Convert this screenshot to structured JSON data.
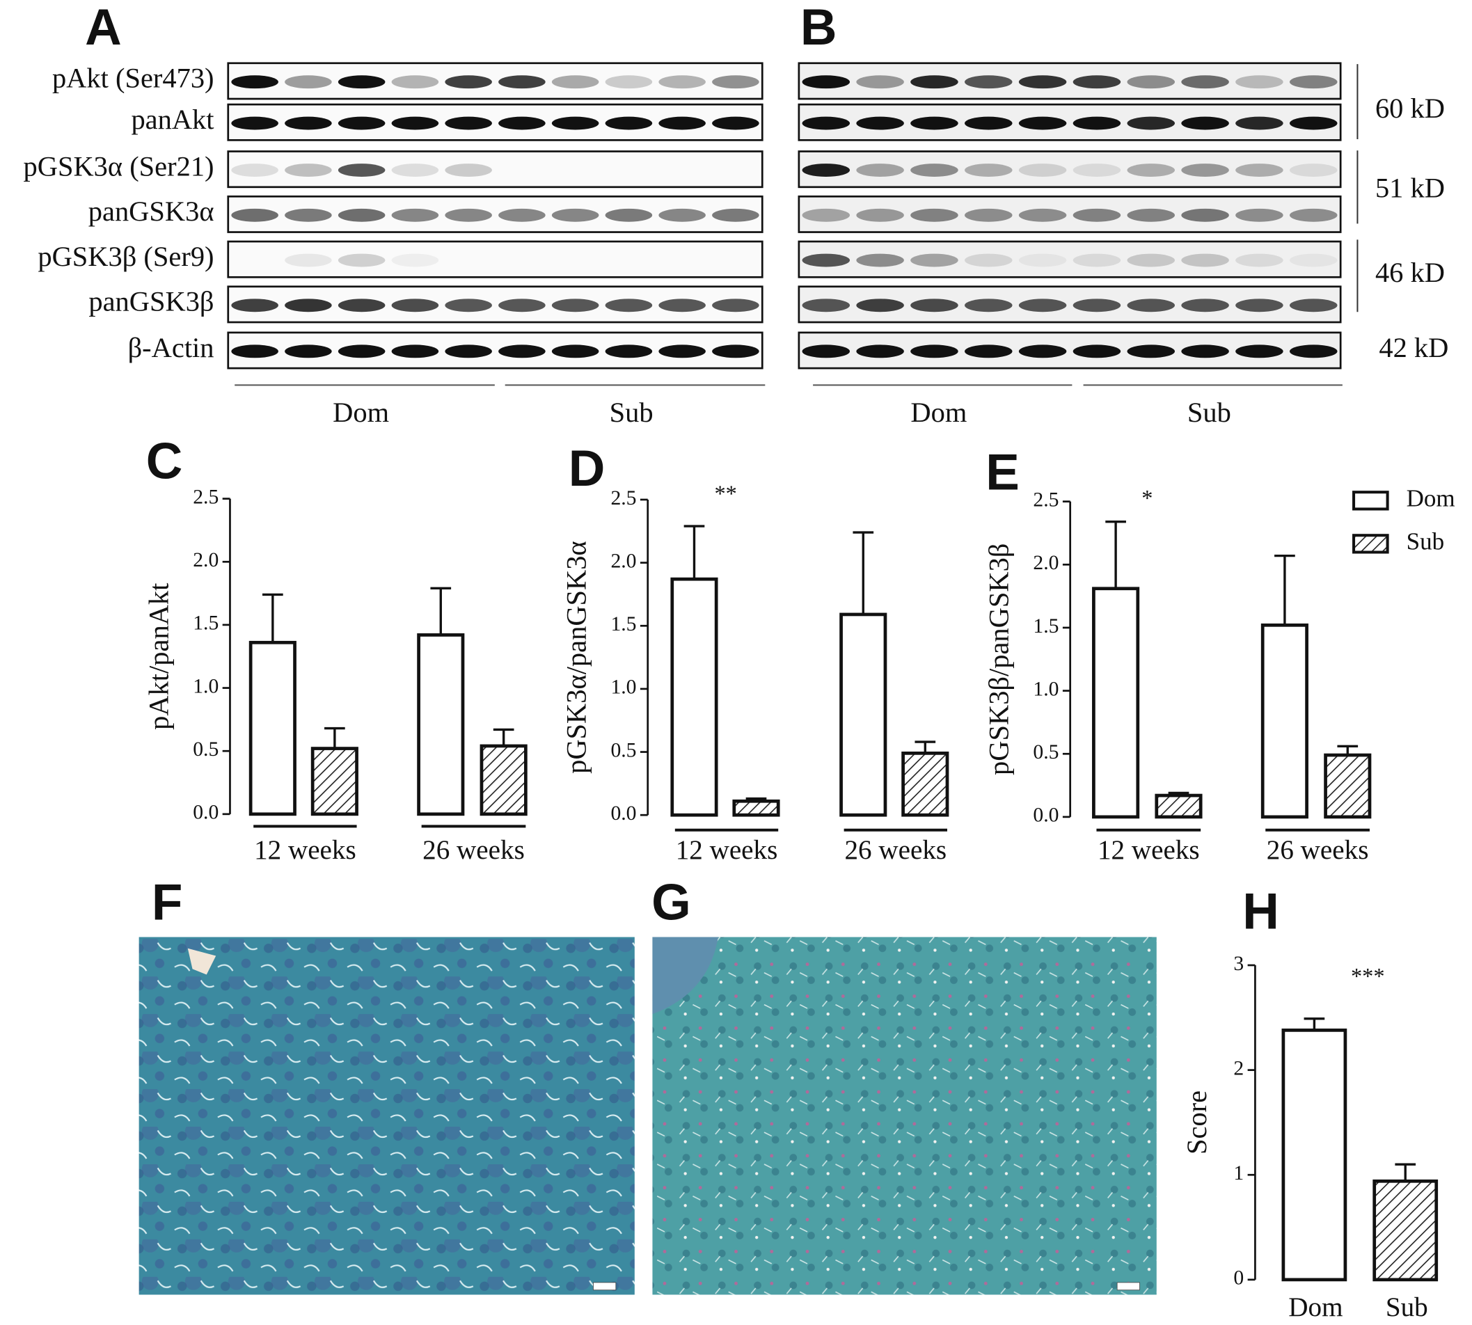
{
  "panel_labels": [
    "A",
    "B",
    "C",
    "D",
    "E",
    "F",
    "G",
    "H"
  ],
  "blots": {
    "rows": [
      "pAkt (Ser473)",
      "panAkt",
      "pGSK3α (Ser21)",
      "panGSK3α",
      "pGSK3β (Ser9)",
      "panGSK3β",
      "β-Actin"
    ],
    "sizes": [
      "60 kD",
      "51 kD",
      "46 kD",
      "42 kD"
    ],
    "groups": [
      "Dom",
      "Sub"
    ]
  },
  "chart_data": [
    {
      "type": "bar",
      "y_label": "pAkt/panAkt",
      "categories": [
        "12 weeks",
        "26 weeks"
      ],
      "ylim": [
        0,
        2.5
      ],
      "yticks": [
        {
          "value": 0,
          "label": "0.0"
        },
        0.5,
        {
          "value": 1,
          "label": "1.0"
        },
        1.5,
        {
          "value": 2,
          "label": "2.0"
        },
        2.5
      ],
      "series": [
        {
          "name": "Dom",
          "color": "#ffffff",
          "values": [
            1.36,
            1.42
          ],
          "errors": [
            0.38,
            0.37
          ]
        },
        {
          "name": "Sub",
          "color": "#222222",
          "hatched": true,
          "values": [
            0.52,
            0.54
          ],
          "errors": [
            0.16,
            0.13
          ]
        }
      ]
    },
    {
      "type": "bar",
      "y_label": "pGSK3α/panGSK3α",
      "categories": [
        "12 weeks",
        "26 weeks"
      ],
      "annotation": "**",
      "ylim": [
        0,
        2.5
      ],
      "yticks": [
        {
          "value": 0,
          "label": "0.0"
        },
        0.5,
        {
          "value": 1,
          "label": "1.0"
        },
        1.5,
        {
          "value": 2,
          "label": "2.0"
        },
        2.5
      ],
      "series": [
        {
          "name": "Dom",
          "color": "#ffffff",
          "values": [
            1.87,
            1.59
          ],
          "errors": [
            0.42,
            0.65
          ]
        },
        {
          "name": "Sub",
          "color": "#222222",
          "hatched": true,
          "values": [
            0.11,
            0.49
          ],
          "errors": [
            0.02,
            0.09
          ]
        }
      ]
    },
    {
      "type": "bar",
      "y_label": "pGSK3β/panGSK3β",
      "categories": [
        "12 weeks",
        "26 weeks"
      ],
      "annotation": "*",
      "legend": "upper right",
      "ylim": [
        0,
        2.5
      ],
      "yticks": [
        {
          "value": 0,
          "label": "0.0"
        },
        0.5,
        {
          "value": 1,
          "label": "1.0"
        },
        1.5,
        {
          "value": 2,
          "label": "2.0"
        },
        2.5
      ],
      "series": [
        {
          "name": "Dom",
          "color": "#ffffff",
          "values": [
            1.81,
            1.52
          ],
          "errors": [
            0.53,
            0.55
          ]
        },
        {
          "name": "Sub",
          "color": "#222222",
          "hatched": true,
          "values": [
            0.17,
            0.49
          ],
          "errors": [
            0.02,
            0.07
          ]
        }
      ]
    },
    {
      "type": "bar",
      "y_label": "Score",
      "categories": [
        "Dom",
        "Sub"
      ],
      "annotation": "***",
      "ylim": [
        0,
        3
      ],
      "yticks": [
        0,
        1,
        2,
        3
      ],
      "series": [
        {
          "name": "Score",
          "colors": [
            "#ffffff",
            "#222222"
          ],
          "hatched": [
            false,
            true
          ],
          "values": [
            2.38,
            0.94
          ],
          "errors": [
            0.11,
            0.16
          ]
        }
      ]
    }
  ]
}
